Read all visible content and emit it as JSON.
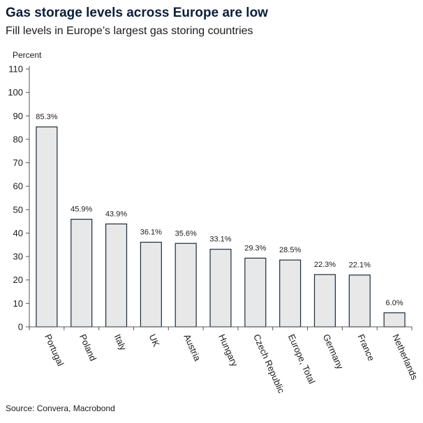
{
  "title": "Gas storage levels across Europe are low",
  "subtitle": "Fill levels in Europe’s largest gas storing countries",
  "source": "Source: Convera, Macrobond",
  "colors": {
    "bar_fill": "#e8e8e8",
    "bar_stroke": "#1c2b3a",
    "axis": "#555555",
    "title": "#0b1f3a"
  },
  "chart_data": {
    "type": "bar",
    "ylabel": "Percent",
    "xlabel": "",
    "ylim": [
      0,
      110
    ],
    "yticks": [
      0,
      10,
      20,
      30,
      40,
      50,
      60,
      70,
      80,
      90,
      100,
      110
    ],
    "grid": false,
    "categories": [
      "Portugal",
      "Poland",
      "Italy",
      "UK",
      "Austria",
      "Hungary",
      "Czech Republic",
      "Europe, Total",
      "Germany",
      "France",
      "Netherlands"
    ],
    "values": [
      85.3,
      45.9,
      43.9,
      36.1,
      35.6,
      33.1,
      29.3,
      28.5,
      22.3,
      22.1,
      6.0
    ],
    "data_labels": [
      "85.3%",
      "45.9%",
      "43.9%",
      "36.1%",
      "35.6%",
      "33.1%",
      "29.3%",
      "28.5%",
      "22.3%",
      "22.1%",
      "6.0%"
    ]
  }
}
